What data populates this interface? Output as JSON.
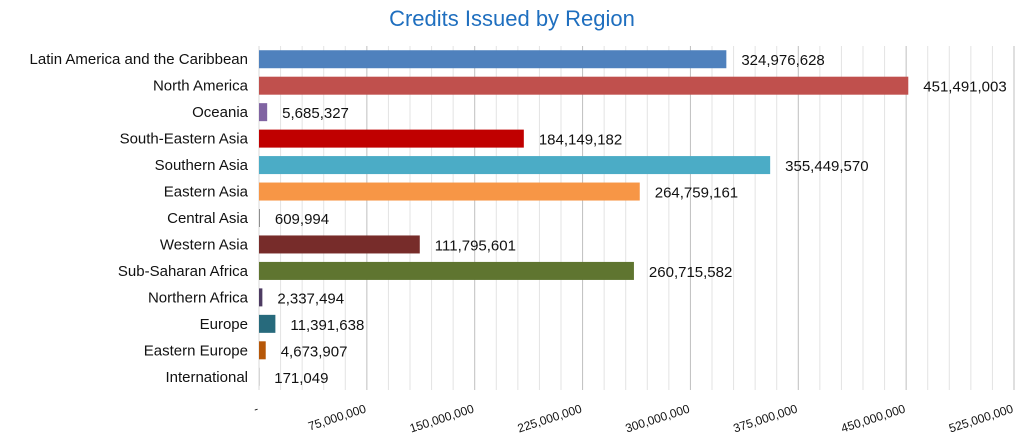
{
  "chart_data": {
    "type": "bar",
    "orientation": "horizontal",
    "title": "Credits Issued by Region",
    "xlabel": "",
    "ylabel": "",
    "xlim": [
      0,
      525000000
    ],
    "grid": true,
    "categories": [
      "Latin America and the Caribbean",
      "North America",
      "Oceania",
      "South-Eastern Asia",
      "Southern Asia",
      "Eastern Asia",
      "Central Asia",
      "Western Asia",
      "Sub-Saharan Africa",
      "Northern Africa",
      "Europe",
      "Eastern Europe",
      "International"
    ],
    "values": [
      324976628,
      451491003,
      5685327,
      184149182,
      355449570,
      264759161,
      609994,
      111795601,
      260715582,
      2337494,
      11391638,
      4673907,
      171049
    ],
    "value_labels": [
      "324,976,628",
      "451,491,003",
      "5,685,327",
      "184,149,182",
      "355,449,570",
      "264,759,161",
      "609,994",
      "111,795,601",
      "260,715,582",
      "2,337,494",
      "11,391,638",
      "4,673,907",
      "171,049"
    ],
    "colors": [
      "#4f81bd",
      "#c0504d",
      "#8064a2",
      "#c00000",
      "#4bacc6",
      "#f79646",
      "#7f7f7f",
      "#772c2a",
      "#5f7530",
      "#4d3b62",
      "#276a7c",
      "#b65708",
      "#7f7f7f"
    ],
    "x_ticks": [
      0,
      75000000,
      150000000,
      225000000,
      300000000,
      375000000,
      450000000,
      525000000
    ],
    "x_tick_labels": [
      "-",
      "75,000,000",
      "150,000,000",
      "225,000,000",
      "300,000,000",
      "375,000,000",
      "450,000,000",
      "525,000,000"
    ]
  }
}
